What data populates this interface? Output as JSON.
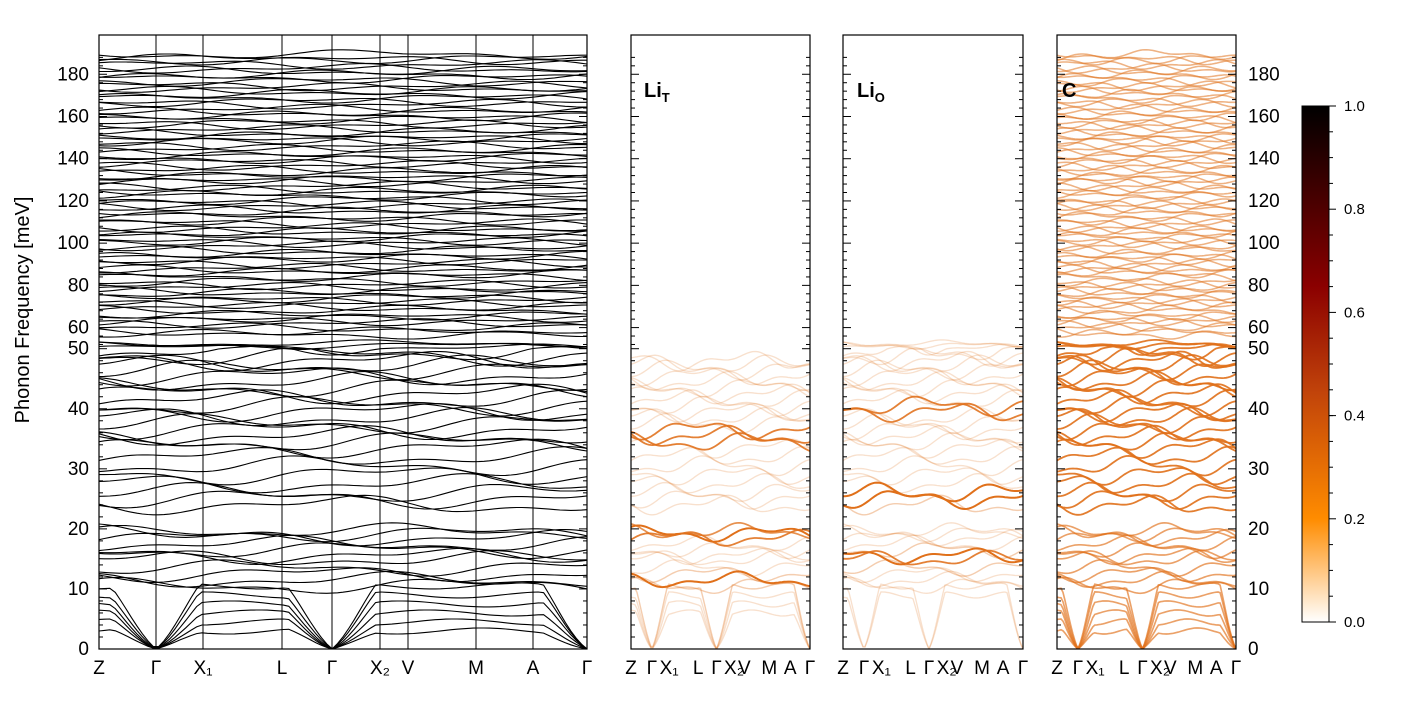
{
  "chart_data": {
    "type": "line",
    "ylabel": "Phonon Frequency [meV]",
    "y_scale": "piecewise linear (0–50 compressed scale, 50–190 linear)",
    "ylim": [
      0,
      190
    ],
    "yticks": [
      0,
      10,
      20,
      30,
      40,
      50,
      60,
      80,
      100,
      120,
      140,
      160,
      180
    ],
    "kpath_labels": [
      "Z",
      "Γ",
      "X₁",
      "L",
      "Γ",
      "X₂",
      "V",
      "M",
      "A",
      "Γ"
    ],
    "kpath_labels_small": [
      "Z",
      "Γ",
      "X₁",
      "L",
      "Γ",
      "X₂",
      "V",
      "M",
      "A",
      "Γ"
    ],
    "panels": [
      {
        "name": "full",
        "label": "",
        "color": "#000000",
        "acoustic_at_gamma": [
          0
        ],
        "band_groups_meV": [
          [
            0,
            10
          ],
          [
            10,
            20
          ],
          [
            20,
            50
          ],
          [
            55,
            190
          ]
        ]
      },
      {
        "name": "LiT",
        "label": "Li",
        "label_sub": "T",
        "color": "#e0701a",
        "strong_bands_meV": [
          11.5,
          19,
          36,
          35
        ],
        "weak_bands_meV_range": [
          5,
          48
        ]
      },
      {
        "name": "LiO",
        "label": "Li",
        "label_sub": "O",
        "color": "#e0701a",
        "strong_bands_meV": [
          14.5,
          15.5,
          25,
          26,
          40
        ],
        "weak_bands_meV_range": [
          8,
          56
        ]
      },
      {
        "name": "C",
        "label": "C",
        "label_sub": "",
        "color": "#e0701a",
        "strong_bands_meV_range": [
          0,
          190
        ]
      }
    ],
    "colorbar": {
      "ticks": [
        0.0,
        0.2,
        0.4,
        0.6,
        0.8,
        1.0
      ],
      "tick_labels": [
        "0.0",
        "0.2",
        "0.4",
        "0.6",
        "0.8",
        "1.0"
      ],
      "colors": [
        "#ffffff",
        "#ff8c00",
        "#c0420a",
        "#8b0000",
        "#000000"
      ]
    }
  }
}
